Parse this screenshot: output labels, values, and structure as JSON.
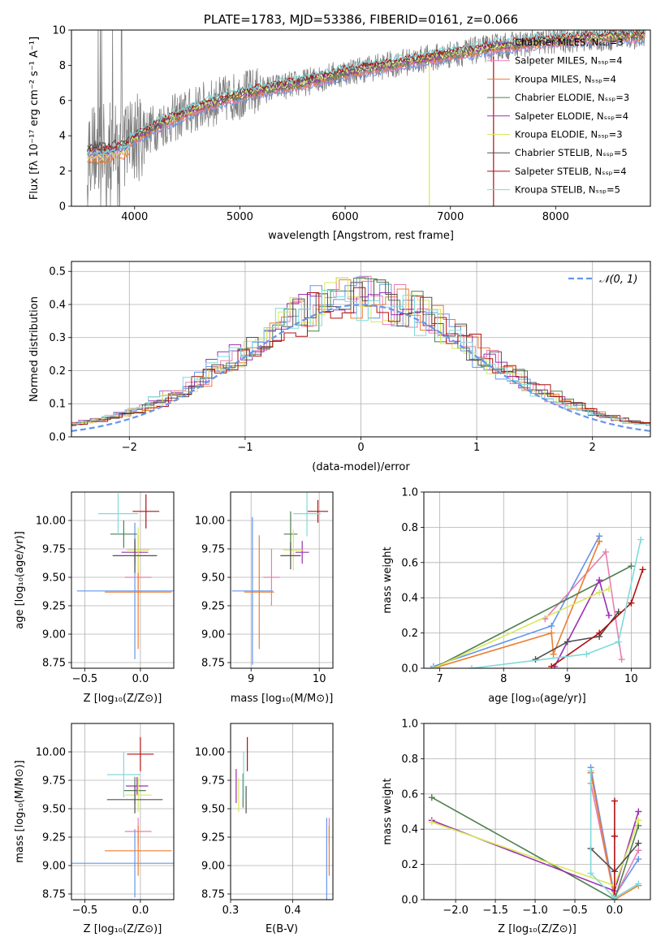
{
  "colors": {
    "chabrier_miles": "#6495ed",
    "salpeter_miles": "#e77fb1",
    "kroupa_miles": "#ed7d31",
    "chabrier_elodie": "#4f7f4f",
    "salpeter_elodie": "#9b30b0",
    "kroupa_elodie": "#d8e85a",
    "chabrier_stelib": "#505050",
    "salpeter_stelib": "#b01010",
    "kroupa_stelib": "#7fdbdb"
  },
  "chart_data": [
    {
      "id": "spectrum",
      "type": "line",
      "title": "PLATE=1783, MJD=53386, FIBERID=0161, z=0.066",
      "xlabel": "wavelength [Angstrom, rest frame]",
      "ylabel": "Flux [fλ 10⁻¹⁷ erg cm⁻² s⁻¹ A⁻¹]",
      "xlim": [
        3400,
        8900
      ],
      "ylim": [
        0,
        10
      ],
      "xticks": [
        "4000",
        "5000",
        "6000",
        "7000",
        "8000"
      ],
      "yticks": [
        "0",
        "2",
        "4",
        "6",
        "8",
        "10"
      ],
      "grid": false,
      "legend_position": "right",
      "series": [
        {
          "name": "Chabrier MILES, N_SSP=3",
          "color_key": "chabrier_miles"
        },
        {
          "name": "Salpeter MILES, N_SSP=4",
          "color_key": "salpeter_miles"
        },
        {
          "name": "Kroupa MILES, N_SSP=4",
          "color_key": "kroupa_miles"
        },
        {
          "name": "Chabrier ELODIE, N_SSP=3",
          "color_key": "chabrier_elodie"
        },
        {
          "name": "Salpeter ELODIE, N_SSP=4",
          "color_key": "salpeter_elodie"
        },
        {
          "name": "Kroupa ELODIE, N_SSP=3",
          "color_key": "kroupa_elodie"
        },
        {
          "name": "Chabrier STELIB, N_SSP=5",
          "color_key": "chabrier_stelib"
        },
        {
          "name": "Salpeter STELIB, N_SSP=4",
          "color_key": "salpeter_stelib"
        },
        {
          "name": "Kroupa STELIB, N_SSP=5",
          "color_key": "kroupa_stelib"
        }
      ],
      "continuum": [
        [
          3550,
          3.3
        ],
        [
          3700,
          3.3
        ],
        [
          3850,
          3.5
        ],
        [
          3950,
          3.7
        ],
        [
          4100,
          4.2
        ],
        [
          4300,
          4.8
        ],
        [
          4500,
          5.3
        ],
        [
          4700,
          5.8
        ],
        [
          5000,
          6.3
        ],
        [
          5300,
          6.7
        ],
        [
          5600,
          7.0
        ],
        [
          6000,
          7.6
        ],
        [
          6300,
          7.9
        ],
        [
          6700,
          8.3
        ],
        [
          7000,
          8.6
        ],
        [
          7400,
          9.0
        ],
        [
          7800,
          9.3
        ],
        [
          8200,
          9.5
        ],
        [
          8800,
          9.7
        ]
      ]
    },
    {
      "id": "residuals",
      "type": "histogram",
      "xlabel": "(data-model)/error",
      "ylabel": "Normed distribution",
      "xlim": [
        -2.5,
        2.5
      ],
      "ylim": [
        0,
        0.53
      ],
      "xticks": [
        "−2",
        "−1",
        "0",
        "1",
        "2"
      ],
      "yticks": [
        "0.0",
        "0.1",
        "0.2",
        "0.3",
        "0.4",
        "0.5"
      ],
      "grid": true,
      "legend_position": "top-right",
      "legend": "𝒩(0, 1)",
      "bin_width": 0.1
    },
    {
      "id": "age_vs_Z",
      "type": "scatter",
      "xlabel": "Z [log₁₀(Z/Z⊙)]",
      "ylabel": "age  [log₁₀(age/yr)]",
      "xlim": [
        -0.62,
        0.3
      ],
      "ylim": [
        8.7,
        10.25
      ],
      "xticks": [
        "−0.5",
        "0.0"
      ],
      "yticks": [
        "8.75",
        "9.00",
        "9.25",
        "9.50",
        "9.75",
        "10.00"
      ],
      "points": [
        {
          "c": "chabrier_miles",
          "x": -0.05,
          "y": 9.38,
          "xerr": 0.52,
          "yerr": 0.6
        },
        {
          "c": "salpeter_miles",
          "x": -0.02,
          "y": 9.5,
          "xerr": 0.12,
          "yerr": 0.1
        },
        {
          "c": "kroupa_miles",
          "x": -0.02,
          "y": 9.37,
          "xerr": 0.3,
          "yerr": 0.5
        },
        {
          "c": "chabrier_elodie",
          "x": -0.15,
          "y": 9.88,
          "xerr": 0.12,
          "yerr": 0.12
        },
        {
          "c": "salpeter_elodie",
          "x": -0.05,
          "y": 9.72,
          "xerr": 0.12,
          "yerr": 0.1
        },
        {
          "c": "kroupa_elodie",
          "x": -0.02,
          "y": 9.74,
          "xerr": 0.1,
          "yerr": 0.2
        },
        {
          "c": "chabrier_stelib",
          "x": -0.05,
          "y": 9.69,
          "xerr": 0.2,
          "yerr": 0.15
        },
        {
          "c": "salpeter_stelib",
          "x": 0.05,
          "y": 10.08,
          "xerr": 0.12,
          "yerr": 0.15
        },
        {
          "c": "kroupa_stelib",
          "x": -0.2,
          "y": 10.06,
          "xerr": 0.18,
          "yerr": 0.18
        }
      ]
    },
    {
      "id": "age_vs_mass",
      "type": "scatter",
      "xlabel": "mass [log₁₀(M/M⊙)]",
      "ylabel": "",
      "xlim": [
        8.7,
        10.2
      ],
      "ylim": [
        8.7,
        10.25
      ],
      "xticks": [
        "9",
        "10"
      ],
      "yticks": [
        "8.75",
        "9.00",
        "9.25",
        "9.50",
        "9.75",
        "10.00"
      ],
      "points": [
        {
          "c": "chabrier_miles",
          "x": 9.02,
          "y": 9.38,
          "xerr": 0.3,
          "yerr": 0.65
        },
        {
          "c": "salpeter_miles",
          "x": 9.3,
          "y": 9.5,
          "xerr": 0.12,
          "yerr": 0.25
        },
        {
          "c": "kroupa_miles",
          "x": 9.12,
          "y": 9.37,
          "xerr": 0.22,
          "yerr": 0.5
        },
        {
          "c": "chabrier_elodie",
          "x": 9.58,
          "y": 9.88,
          "xerr": 0.1,
          "yerr": 0.2
        },
        {
          "c": "salpeter_elodie",
          "x": 9.75,
          "y": 9.72,
          "xerr": 0.1,
          "yerr": 0.1
        },
        {
          "c": "kroupa_elodie",
          "x": 9.62,
          "y": 9.74,
          "xerr": 0.15,
          "yerr": 0.18
        },
        {
          "c": "chabrier_stelib",
          "x": 9.58,
          "y": 9.69,
          "xerr": 0.15,
          "yerr": 0.12
        },
        {
          "c": "salpeter_stelib",
          "x": 9.98,
          "y": 10.08,
          "xerr": 0.15,
          "yerr": 0.1
        },
        {
          "c": "kroupa_stelib",
          "x": 9.82,
          "y": 10.06,
          "xerr": 0.2,
          "yerr": 0.2
        }
      ]
    },
    {
      "id": "weight_vs_age",
      "type": "line",
      "xlabel": "age  [log₁₀(age/yr)]",
      "ylabel": "mass weight",
      "xlim": [
        6.75,
        10.3
      ],
      "ylim": [
        0,
        1
      ],
      "xticks": [
        "7",
        "8",
        "9",
        "10"
      ],
      "yticks": [
        "0.0",
        "0.2",
        "0.4",
        "0.6",
        "0.8",
        "1.0"
      ],
      "grid": true,
      "series": [
        {
          "c": "chabrier_miles",
          "points": [
            [
              6.9,
              0.01
            ],
            [
              8.75,
              0.24
            ],
            [
              9.5,
              0.75
            ]
          ]
        },
        {
          "c": "salpeter_miles",
          "points": [
            [
              8.65,
              0.28
            ],
            [
              9.6,
              0.66
            ],
            [
              9.85,
              0.05
            ]
          ]
        },
        {
          "c": "kroupa_miles",
          "points": [
            [
              6.9,
              0.0
            ],
            [
              8.75,
              0.2
            ],
            [
              8.78,
              0.08
            ],
            [
              9.5,
              0.72
            ]
          ]
        },
        {
          "c": "chabrier_elodie",
          "points": [
            [
              6.9,
              0.0
            ],
            [
              10.0,
              0.58
            ]
          ]
        },
        {
          "c": "salpeter_elodie",
          "points": [
            [
              8.8,
              0.01
            ],
            [
              9.5,
              0.5
            ],
            [
              9.65,
              0.3
            ]
          ]
        },
        {
          "c": "kroupa_elodie",
          "points": [
            [
              6.9,
              0.0
            ],
            [
              9.5,
              0.43
            ],
            [
              9.65,
              0.45
            ]
          ]
        },
        {
          "c": "chabrier_stelib",
          "points": [
            [
              8.5,
              0.05
            ],
            [
              9.0,
              0.15
            ],
            [
              9.5,
              0.18
            ],
            [
              9.8,
              0.32
            ]
          ]
        },
        {
          "c": "salpeter_stelib",
          "points": [
            [
              8.75,
              0.01
            ],
            [
              9.5,
              0.2
            ],
            [
              10.0,
              0.37
            ],
            [
              10.18,
              0.56
            ]
          ]
        },
        {
          "c": "kroupa_stelib",
          "points": [
            [
              7.5,
              0.0
            ],
            [
              9.3,
              0.08
            ],
            [
              9.8,
              0.15
            ],
            [
              10.15,
              0.73
            ]
          ]
        }
      ]
    },
    {
      "id": "mass_vs_Z",
      "type": "scatter",
      "xlabel": "Z [log₁₀(Z/Z⊙)]",
      "ylabel": "mass [log₁₀(M/M⊙)]",
      "xlim": [
        -0.62,
        0.3
      ],
      "ylim": [
        8.7,
        10.25
      ],
      "xticks": [
        "−0.5",
        "0.0"
      ],
      "yticks": [
        "8.75",
        "9.00",
        "9.25",
        "9.50",
        "9.75",
        "10.00"
      ],
      "points": [
        {
          "c": "chabrier_miles",
          "x": -0.05,
          "y": 9.02,
          "xerr": 0.6,
          "yerr": 0.3
        },
        {
          "c": "salpeter_miles",
          "x": -0.02,
          "y": 9.3,
          "xerr": 0.12,
          "yerr": 0.12
        },
        {
          "c": "kroupa_miles",
          "x": -0.02,
          "y": 9.13,
          "xerr": 0.3,
          "yerr": 0.22
        },
        {
          "c": "chabrier_elodie",
          "x": -0.05,
          "y": 9.66,
          "xerr": 0.1,
          "yerr": 0.12
        },
        {
          "c": "salpeter_elodie",
          "x": -0.03,
          "y": 9.7,
          "xerr": 0.1,
          "yerr": 0.08
        },
        {
          "c": "kroupa_elodie",
          "x": -0.02,
          "y": 9.62,
          "xerr": 0.12,
          "yerr": 0.15
        },
        {
          "c": "chabrier_stelib",
          "x": -0.05,
          "y": 9.58,
          "xerr": 0.25,
          "yerr": 0.12
        },
        {
          "c": "salpeter_stelib",
          "x": 0.0,
          "y": 9.98,
          "xerr": 0.12,
          "yerr": 0.15
        },
        {
          "c": "kroupa_stelib",
          "x": -0.15,
          "y": 9.8,
          "xerr": 0.15,
          "yerr": 0.2
        }
      ]
    },
    {
      "id": "mass_vs_ebv",
      "type": "scatter",
      "xlabel": "E(B-V)",
      "ylabel": "",
      "xlim": [
        0.3,
        0.465
      ],
      "ylim": [
        8.7,
        10.25
      ],
      "xticks": [
        "0.3",
        "0.4"
      ],
      "yticks": [
        "8.75",
        "9.00",
        "9.25",
        "9.50",
        "9.75",
        "10.00"
      ],
      "points": [
        {
          "c": "chabrier_miles",
          "x": 0.455,
          "y": 9.02,
          "yerr": 0.4
        },
        {
          "c": "salpeter_miles",
          "x": 0.459,
          "y": 9.3,
          "yerr": 0.12
        },
        {
          "c": "kroupa_miles",
          "x": 0.459,
          "y": 9.13,
          "yerr": 0.22
        },
        {
          "c": "chabrier_elodie",
          "x": 0.32,
          "y": 9.66,
          "yerr": 0.15
        },
        {
          "c": "salpeter_elodie",
          "x": 0.309,
          "y": 9.7,
          "yerr": 0.15
        },
        {
          "c": "kroupa_elodie",
          "x": 0.313,
          "y": 9.62,
          "yerr": 0.15
        },
        {
          "c": "chabrier_stelib",
          "x": 0.325,
          "y": 9.58,
          "yerr": 0.12
        },
        {
          "c": "salpeter_stelib",
          "x": 0.327,
          "y": 9.98,
          "yerr": 0.15
        },
        {
          "c": "kroupa_stelib",
          "x": 0.321,
          "y": 9.8,
          "yerr": 0.2
        }
      ]
    },
    {
      "id": "weight_vs_Z",
      "type": "line",
      "xlabel": "Z [log₁₀(Z/Z⊙)]",
      "ylabel": "mass weight",
      "xlim": [
        -2.4,
        0.45
      ],
      "ylim": [
        0,
        1
      ],
      "xticks": [
        "−2.0",
        "−1.5",
        "−1.0",
        "−0.5",
        "0.0"
      ],
      "yticks": [
        "0.0",
        "0.2",
        "0.4",
        "0.6",
        "0.8",
        "1.0"
      ],
      "grid": true,
      "series": [
        {
          "c": "chabrier_miles",
          "points": [
            [
              -0.3,
              0.75
            ],
            [
              0.0,
              0.02
            ],
            [
              0.3,
              0.23
            ]
          ]
        },
        {
          "c": "salpeter_miles",
          "points": [
            [
              -0.3,
              0.66
            ],
            [
              0.0,
              0.01
            ],
            [
              0.3,
              0.28
            ]
          ]
        },
        {
          "c": "kroupa_miles",
          "points": [
            [
              -0.3,
              0.72
            ],
            [
              0.0,
              0.0
            ],
            [
              0.3,
              0.08
            ]
          ]
        },
        {
          "c": "chabrier_elodie",
          "points": [
            [
              -2.3,
              0.58
            ],
            [
              0.0,
              0.0
            ],
            [
              0.3,
              0.42
            ]
          ]
        },
        {
          "c": "salpeter_elodie",
          "points": [
            [
              -2.3,
              0.45
            ],
            [
              0.0,
              0.05
            ],
            [
              0.3,
              0.5
            ]
          ]
        },
        {
          "c": "kroupa_elodie",
          "points": [
            [
              -2.3,
              0.44
            ],
            [
              0.0,
              0.08
            ],
            [
              0.3,
              0.45
            ]
          ]
        },
        {
          "c": "chabrier_stelib",
          "points": [
            [
              -0.3,
              0.29
            ],
            [
              0.0,
              0.16
            ],
            [
              0.3,
              0.32
            ]
          ]
        },
        {
          "c": "salpeter_stelib",
          "points": [
            [
              0.0,
              0.56
            ],
            [
              0.0,
              0.36
            ],
            [
              0.0,
              0.01
            ]
          ]
        },
        {
          "c": "kroupa_stelib",
          "points": [
            [
              -0.3,
              0.73
            ],
            [
              -0.3,
              0.15
            ],
            [
              0.0,
              0.01
            ],
            [
              0.3,
              0.09
            ]
          ]
        }
      ]
    }
  ]
}
